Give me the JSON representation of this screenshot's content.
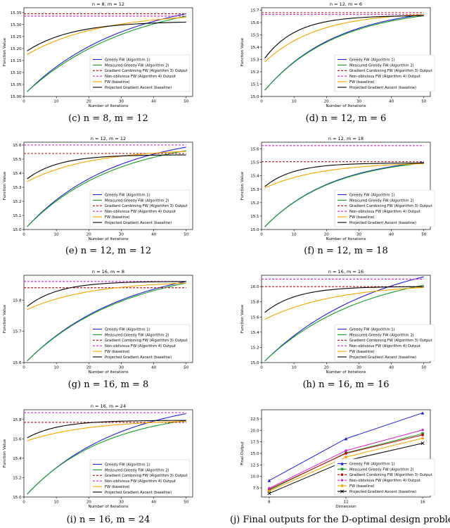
{
  "series_styles": [
    {
      "name": "Greedy FW (Algorithm 1)",
      "color": "#1f1fcf",
      "dash": ""
    },
    {
      "name": "Measured Greedy FW (Algorithm 2)",
      "color": "#1a9a2a",
      "dash": ""
    },
    {
      "name": "Gradient Combining FW (Algorithm 3) Output",
      "color": "#b01010",
      "dash": "3,2"
    },
    {
      "name": "Non-oblivious FW (Algorithm 4) Output",
      "color": "#d020d0",
      "dash": "3,2"
    },
    {
      "name": "FW (baseline)",
      "color": "#f5a300",
      "dash": ""
    },
    {
      "name": "Projected Gradient Ascent (baseline)",
      "color": "#000000",
      "dash": ""
    }
  ],
  "chart_data": [
    {
      "type": "line",
      "title": "n = 8, m = 12",
      "caption": "(c) n = 8, m = 12",
      "xlabel": "Number of Iterations",
      "ylabel": "Function Value",
      "xlim": [
        0,
        52
      ],
      "ylim": [
        15.0,
        15.37
      ],
      "xticks": [
        0,
        10,
        20,
        30,
        40,
        50
      ],
      "xtick_labels": [
        "0",
        "10",
        "20",
        "30",
        "40",
        "50"
      ],
      "yticks": [
        15.0,
        15.05,
        15.1,
        15.15,
        15.2,
        15.25,
        15.3,
        15.35
      ],
      "ytick_labels": [
        "15.00",
        "15.05",
        "15.10",
        "15.15",
        "15.20",
        "15.25",
        "15.30",
        "15.35"
      ],
      "curves": [
        {
          "series": 0,
          "kind": "grow",
          "start": 15.02,
          "end": 15.345,
          "k": 1.6
        },
        {
          "series": 1,
          "kind": "grow",
          "start": 15.02,
          "end": 15.335,
          "k": 1.5
        },
        {
          "series": 2,
          "kind": "flat",
          "value": 15.345
        },
        {
          "series": 3,
          "kind": "flat",
          "value": 15.335
        },
        {
          "series": 4,
          "kind": "grow",
          "start": 15.175,
          "end": 15.33,
          "k": 2.2
        },
        {
          "series": 5,
          "kind": "grow",
          "start": 15.19,
          "end": 15.31,
          "k": 3.5
        }
      ]
    },
    {
      "type": "line",
      "title": "n = 12, m = 6",
      "caption": "(d) n = 12, m = 6",
      "xlabel": "Number of Iterations",
      "ylabel": "Function Value",
      "xlim": [
        0,
        52
      ],
      "ylim": [
        15.0,
        15.72
      ],
      "xticks": [
        0,
        10,
        20,
        30,
        40,
        50
      ],
      "xtick_labels": [
        "0",
        "10",
        "20",
        "30",
        "40",
        "50"
      ],
      "yticks": [
        15.0,
        15.1,
        15.2,
        15.3,
        15.4,
        15.5,
        15.6,
        15.7
      ],
      "ytick_labels": [
        "15.0",
        "15.1",
        "15.2",
        "15.3",
        "15.4",
        "15.5",
        "15.6",
        "15.7"
      ],
      "curves": [
        {
          "series": 0,
          "kind": "grow",
          "start": 15.05,
          "end": 15.665,
          "k": 2.2
        },
        {
          "series": 1,
          "kind": "grow",
          "start": 15.05,
          "end": 15.655,
          "k": 2.2
        },
        {
          "series": 2,
          "kind": "flat",
          "value": 15.68
        },
        {
          "series": 3,
          "kind": "flat",
          "value": 15.665
        },
        {
          "series": 4,
          "kind": "grow",
          "start": 15.28,
          "end": 15.665,
          "k": 3.0
        },
        {
          "series": 5,
          "kind": "grow",
          "start": 15.31,
          "end": 15.655,
          "k": 5.0
        }
      ]
    },
    {
      "type": "line",
      "title": "n = 12, m = 12",
      "caption": "(e) n = 12, m = 12",
      "xlabel": "Number of Iterations",
      "ylabel": "Function Value",
      "xlim": [
        0,
        52
      ],
      "ylim": [
        15.0,
        15.62
      ],
      "xticks": [
        0,
        10,
        20,
        30,
        40,
        50
      ],
      "xtick_labels": [
        "0",
        "10",
        "20",
        "30",
        "40",
        "50"
      ],
      "yticks": [
        15.0,
        15.1,
        15.2,
        15.3,
        15.4,
        15.5,
        15.6
      ],
      "ytick_labels": [
        "15.0",
        "15.1",
        "15.2",
        "15.3",
        "15.4",
        "15.5",
        "15.6"
      ],
      "curves": [
        {
          "series": 0,
          "kind": "grow",
          "start": 15.02,
          "end": 15.585,
          "k": 1.8
        },
        {
          "series": 1,
          "kind": "grow",
          "start": 15.02,
          "end": 15.56,
          "k": 1.8
        },
        {
          "series": 2,
          "kind": "flat",
          "value": 15.54
        },
        {
          "series": 3,
          "kind": "flat",
          "value": 15.6
        },
        {
          "series": 4,
          "kind": "grow",
          "start": 15.34,
          "end": 15.555,
          "k": 2.5
        },
        {
          "series": 5,
          "kind": "grow",
          "start": 15.36,
          "end": 15.53,
          "k": 5.0
        }
      ]
    },
    {
      "type": "line",
      "title": "n = 12, m = 18",
      "caption": "(f) n = 12, m = 18",
      "xlabel": "Number of Iterations",
      "ylabel": "Function Value",
      "xlim": [
        0,
        52
      ],
      "ylim": [
        15.0,
        15.65
      ],
      "xticks": [
        0,
        10,
        20,
        30,
        40,
        50
      ],
      "xtick_labels": [
        "0",
        "10",
        "20",
        "30",
        "40",
        "50"
      ],
      "yticks": [
        15.0,
        15.1,
        15.2,
        15.3,
        15.4,
        15.5,
        15.6
      ],
      "ytick_labels": [
        "15.0",
        "15.1",
        "15.2",
        "15.3",
        "15.4",
        "15.5",
        "15.6"
      ],
      "curves": [
        {
          "series": 0,
          "kind": "grow",
          "start": 15.02,
          "end": 15.5,
          "k": 2.3
        },
        {
          "series": 1,
          "kind": "grow",
          "start": 15.02,
          "end": 15.495,
          "k": 2.3
        },
        {
          "series": 2,
          "kind": "flat",
          "value": 15.505
        },
        {
          "series": 3,
          "kind": "flat",
          "value": 15.625
        },
        {
          "series": 4,
          "kind": "grow",
          "start": 15.31,
          "end": 15.49,
          "k": 2.8
        },
        {
          "series": 5,
          "kind": "grow",
          "start": 15.32,
          "end": 15.495,
          "k": 5.5
        }
      ]
    },
    {
      "type": "line",
      "title": "n = 16, m = 8",
      "caption": "(g) n = 16, m = 8",
      "xlabel": "Number of Iterations",
      "ylabel": "Function Value",
      "xlim": [
        0,
        52
      ],
      "ylim": [
        15.6,
        15.88
      ],
      "xticks": [
        0,
        10,
        20,
        30,
        40,
        50
      ],
      "xtick_labels": [
        "0",
        "10",
        "20",
        "30",
        "40",
        "50"
      ],
      "yticks": [
        15.6,
        15.7,
        15.8
      ],
      "ytick_labels": [
        "15.6",
        "15.7",
        "15.8"
      ],
      "curves": [
        {
          "series": 0,
          "kind": "grow",
          "start": 15.605,
          "end": 15.86,
          "k": 1.6
        },
        {
          "series": 1,
          "kind": "grow",
          "start": 15.605,
          "end": 15.855,
          "k": 1.6
        },
        {
          "series": 2,
          "kind": "flat",
          "value": 15.84
        },
        {
          "series": 3,
          "kind": "flat",
          "value": 15.86
        },
        {
          "series": 4,
          "kind": "grow",
          "start": 15.77,
          "end": 15.855,
          "k": 2.5
        },
        {
          "series": 5,
          "kind": "grow",
          "start": 15.78,
          "end": 15.86,
          "k": 5.0
        }
      ]
    },
    {
      "type": "line",
      "title": "n = 16, m = 16",
      "caption": "(h) n = 16, m = 16",
      "xlabel": "Number of Iterations",
      "ylabel": "Function Value",
      "xlim": [
        0,
        52
      ],
      "ylim": [
        15.0,
        16.15
      ],
      "xticks": [
        0,
        10,
        20,
        30,
        40,
        50
      ],
      "xtick_labels": [
        "0",
        "10",
        "20",
        "30",
        "40",
        "50"
      ],
      "yticks": [
        15.0,
        15.2,
        15.4,
        15.6,
        15.8,
        16.0
      ],
      "ytick_labels": [
        "15.0",
        "15.2",
        "15.4",
        "15.6",
        "15.8",
        "16.0"
      ],
      "curves": [
        {
          "series": 0,
          "kind": "grow",
          "start": 15.02,
          "end": 16.13,
          "k": 1.4
        },
        {
          "series": 1,
          "kind": "grow",
          "start": 15.02,
          "end": 16.02,
          "k": 1.6
        },
        {
          "series": 2,
          "kind": "flat",
          "value": 16.0
        },
        {
          "series": 3,
          "kind": "flat",
          "value": 16.1
        },
        {
          "series": 4,
          "kind": "grow",
          "start": 15.57,
          "end": 15.99,
          "k": 2.2
        },
        {
          "series": 5,
          "kind": "grow",
          "start": 15.66,
          "end": 16.0,
          "k": 5.0
        }
      ]
    },
    {
      "type": "line",
      "title": "n = 16, m = 24",
      "caption": "(i) n = 16, m = 24",
      "xlabel": "Number of Iterations",
      "ylabel": "Function Value",
      "xlim": [
        0,
        52
      ],
      "ylim": [
        15.0,
        15.9
      ],
      "xticks": [
        0,
        10,
        20,
        30,
        40,
        50
      ],
      "xtick_labels": [
        "0",
        "10",
        "20",
        "30",
        "40",
        "50"
      ],
      "yticks": [
        15.0,
        15.2,
        15.4,
        15.6,
        15.8
      ],
      "ytick_labels": [
        "15.0",
        "15.2",
        "15.4",
        "15.6",
        "15.8"
      ],
      "curves": [
        {
          "series": 0,
          "kind": "grow",
          "start": 15.03,
          "end": 15.86,
          "k": 1.7
        },
        {
          "series": 1,
          "kind": "grow",
          "start": 15.03,
          "end": 15.79,
          "k": 2.0
        },
        {
          "series": 2,
          "kind": "flat",
          "value": 15.77
        },
        {
          "series": 3,
          "kind": "flat",
          "value": 15.87
        },
        {
          "series": 4,
          "kind": "grow",
          "start": 15.58,
          "end": 15.78,
          "k": 2.5
        },
        {
          "series": 5,
          "kind": "grow",
          "start": 15.61,
          "end": 15.79,
          "k": 5.0
        }
      ]
    },
    {
      "type": "line",
      "title": "",
      "caption": "(j) Final outputs for the D-optimal design problem",
      "xlabel": "Dimension",
      "ylabel": "Final Output",
      "xlim": [
        7.6,
        16.4
      ],
      "ylim": [
        5.5,
        24.5
      ],
      "xticks": [
        8,
        12,
        16
      ],
      "xtick_labels": [
        "8",
        "12",
        "16"
      ],
      "yticks": [
        7.5,
        10.0,
        12.5,
        15.0,
        17.5,
        20.0,
        22.5
      ],
      "ytick_labels": [
        "7.5",
        "10.0",
        "12.5",
        "15.0",
        "17.5",
        "20.0",
        "22.5"
      ],
      "x": [
        8,
        12,
        16
      ],
      "series": [
        {
          "series": 0,
          "marker": "triangle",
          "values": [
            9.1,
            18.2,
            23.8
          ]
        },
        {
          "series": 1,
          "marker": "square",
          "values": [
            7.0,
            15.1,
            19.3
          ]
        },
        {
          "series": 2,
          "marker": "circle",
          "values": [
            7.2,
            15.0,
            19.0
          ]
        },
        {
          "series": 3,
          "marker": "diamond",
          "values": [
            7.4,
            15.6,
            20.1
          ]
        },
        {
          "series": 4,
          "marker": "circle",
          "values": [
            6.8,
            14.2,
            18.3
          ]
        },
        {
          "series": 5,
          "marker": "x",
          "values": [
            6.3,
            13.4,
            17.2
          ]
        }
      ]
    }
  ]
}
